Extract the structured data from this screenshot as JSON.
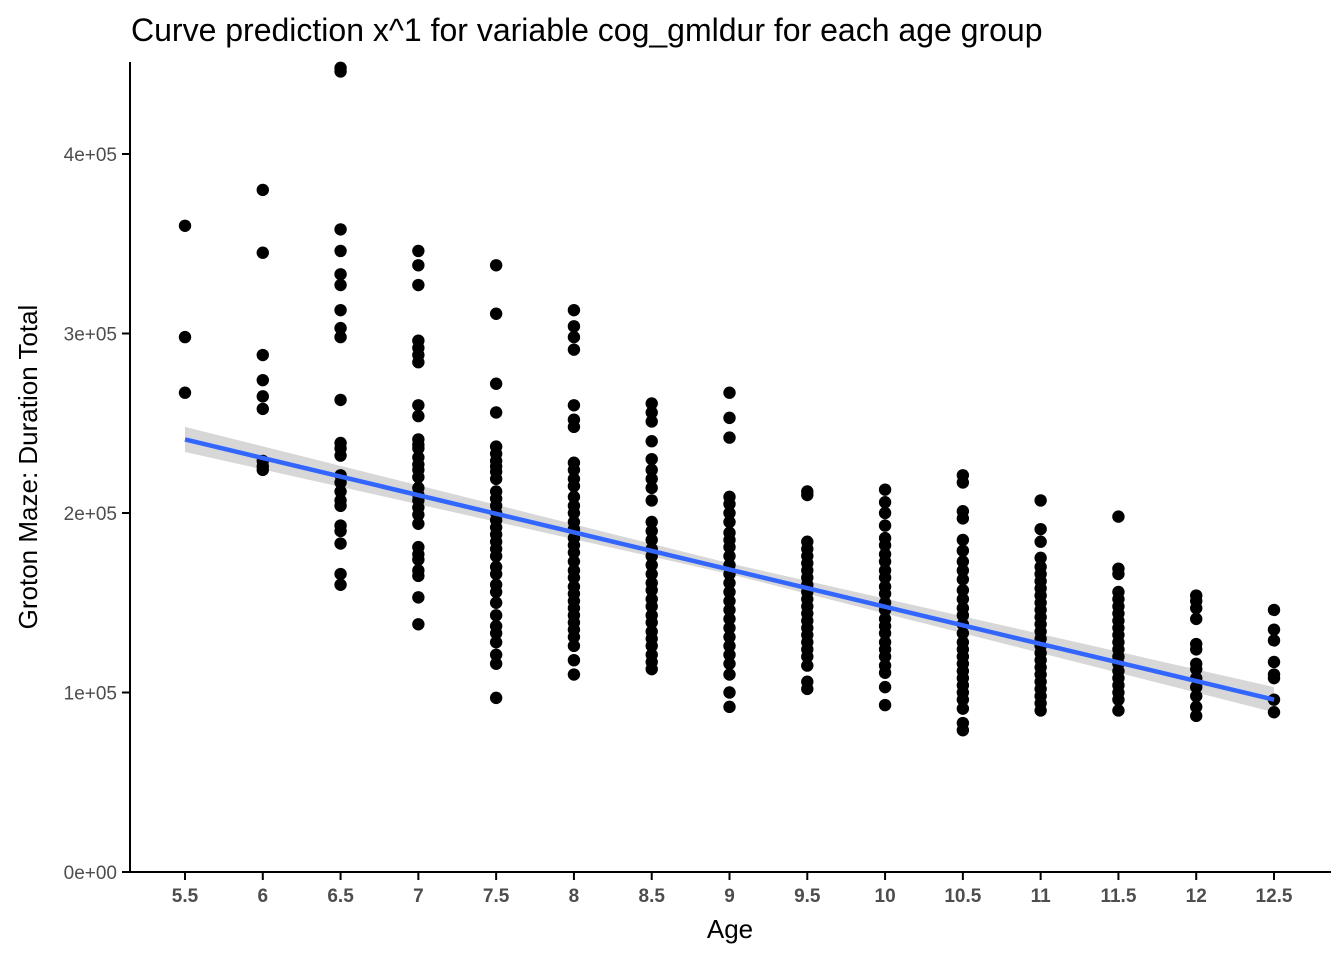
{
  "chart_data": {
    "type": "scatter",
    "title": "Curve prediction x^1  for variable cog_gmldur for each age group",
    "xlabel": "Age",
    "ylabel": "Groton Maze: Duration Total",
    "xlim": [
      5.25,
      12.85
    ],
    "ylim": [
      0,
      450000
    ],
    "x_ticks": [
      5.5,
      6,
      6.5,
      7,
      7.5,
      8,
      8.5,
      9,
      9.5,
      10,
      10.5,
      11,
      11.5,
      12,
      12.5
    ],
    "x_tick_labels": [
      "5.5",
      "6",
      "6.5",
      "7",
      "7.5",
      "8",
      "8.5",
      "9",
      "9.5",
      "10",
      "10.5",
      "11",
      "11.5",
      "12",
      "12.5"
    ],
    "y_ticks": [
      0,
      100000,
      200000,
      300000,
      400000
    ],
    "y_tick_labels": [
      "0e+00",
      "1e+05",
      "2e+05",
      "3e+05",
      "4e+05"
    ],
    "grid": false,
    "point_color": "#000000",
    "fit_line_color": "#3366ff",
    "ci_band_color": "#d3d3d3",
    "points": [
      {
        "x": 5.5,
        "y": [
          360000,
          298000,
          267000
        ]
      },
      {
        "x": 6,
        "y": [
          380000,
          345000,
          288000,
          274000,
          265000,
          258000,
          229000,
          226000,
          224000
        ]
      },
      {
        "x": 6.5,
        "y": [
          448000,
          446000,
          358000,
          346000,
          333000,
          327000,
          313000,
          303000,
          298000,
          263000,
          239000,
          236000,
          232000,
          221000,
          217000,
          212000,
          207000,
          204000,
          193000,
          190000,
          183000,
          166000,
          160000
        ]
      },
      {
        "x": 7,
        "y": [
          346000,
          338000,
          327000,
          296000,
          292000,
          288000,
          284000,
          260000,
          254000,
          241000,
          238000,
          236000,
          231000,
          227000,
          224000,
          220000,
          214000,
          210000,
          207000,
          203000,
          199000,
          194000,
          181000,
          177000,
          174000,
          168000,
          165000,
          153000,
          138000
        ]
      },
      {
        "x": 7.5,
        "y": [
          338000,
          311000,
          272000,
          256000,
          237000,
          233000,
          229000,
          226000,
          223000,
          219000,
          212000,
          208000,
          204000,
          200000,
          196000,
          192000,
          188000,
          184000,
          180000,
          176000,
          170000,
          166000,
          160000,
          156000,
          150000,
          143000,
          137000,
          133000,
          128000,
          121000,
          116000,
          97000
        ]
      },
      {
        "x": 8,
        "y": [
          313000,
          304000,
          298000,
          291000,
          260000,
          252000,
          248000,
          228000,
          224000,
          219000,
          215000,
          209000,
          204000,
          200000,
          195000,
          191000,
          186000,
          182000,
          178000,
          173000,
          168000,
          164000,
          159000,
          155000,
          151000,
          147000,
          143000,
          139000,
          135000,
          131000,
          126000,
          118000,
          110000
        ]
      },
      {
        "x": 8.5,
        "y": [
          261000,
          256000,
          251000,
          240000,
          230000,
          224000,
          219000,
          214000,
          207000,
          195000,
          190000,
          185000,
          180000,
          176000,
          171000,
          166000,
          161000,
          157000,
          152000,
          148000,
          143000,
          139000,
          134000,
          130000,
          126000,
          121000,
          117000,
          113000
        ]
      },
      {
        "x": 9,
        "y": [
          267000,
          253000,
          242000,
          209000,
          205000,
          200000,
          195000,
          189000,
          185000,
          181000,
          176000,
          171000,
          166000,
          161000,
          156000,
          151000,
          146000,
          141000,
          136000,
          131000,
          126000,
          121000,
          116000,
          110000,
          100000,
          92000
        ]
      },
      {
        "x": 9.5,
        "y": [
          212000,
          210000,
          184000,
          180000,
          176000,
          172000,
          168000,
          164000,
          160000,
          156000,
          152000,
          148000,
          144000,
          140000,
          136000,
          132000,
          128000,
          124000,
          120000,
          115000,
          106000,
          102000
        ]
      },
      {
        "x": 10,
        "y": [
          213000,
          206000,
          200000,
          193000,
          186000,
          182000,
          177000,
          173000,
          168000,
          164000,
          159000,
          155000,
          150000,
          146000,
          141000,
          137000,
          133000,
          128000,
          124000,
          120000,
          115000,
          111000,
          103000,
          93000
        ]
      },
      {
        "x": 10.5,
        "y": [
          221000,
          217000,
          201000,
          197000,
          185000,
          179000,
          173000,
          168000,
          163000,
          157000,
          152000,
          147000,
          143000,
          138000,
          133000,
          128000,
          124000,
          120000,
          116000,
          112000,
          108000,
          104000,
          100000,
          96000,
          91000,
          83000,
          79000
        ]
      },
      {
        "x": 11,
        "y": [
          207000,
          191000,
          184000,
          175000,
          170000,
          166000,
          162000,
          158000,
          154000,
          150000,
          146000,
          142000,
          138000,
          134000,
          130000,
          126000,
          122000,
          118000,
          114000,
          110000,
          106000,
          102000,
          98000,
          94000,
          90000
        ]
      },
      {
        "x": 11.5,
        "y": [
          198000,
          169000,
          166000,
          156000,
          152000,
          148000,
          144000,
          140000,
          136000,
          132000,
          128000,
          124000,
          120000,
          116000,
          112000,
          108000,
          104000,
          100000,
          96000,
          90000
        ]
      },
      {
        "x": 12,
        "y": [
          154000,
          151000,
          147000,
          141000,
          127000,
          124000,
          116000,
          113000,
          108000,
          103000,
          98000,
          92000,
          87000
        ]
      },
      {
        "x": 12.5,
        "y": [
          146000,
          135000,
          129000,
          117000,
          110000,
          108000,
          96000,
          89000
        ]
      }
    ],
    "fit_line": {
      "x": [
        5.5,
        12.5
      ],
      "y": [
        241000,
        96000
      ]
    },
    "ci_band": {
      "x": [
        5.5,
        9,
        12.5
      ],
      "upper": [
        248000,
        172000,
        103000
      ],
      "lower": [
        234000,
        166000,
        89000
      ]
    }
  }
}
